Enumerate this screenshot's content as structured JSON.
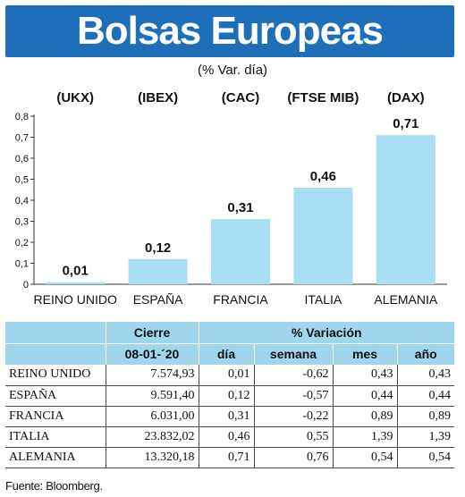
{
  "header": {
    "title": "Bolsas Europeas",
    "subtitle": "(% Var. día)"
  },
  "colors": {
    "banner": "#1c6fb8",
    "bar_fill": "#a9dff5",
    "table_header": "#9fd6ee"
  },
  "chart_data": {
    "type": "bar",
    "categories": [
      "REINO UNIDO",
      "ESPAÑA",
      "FRANCIA",
      "ITALIA",
      "ALEMANIA"
    ],
    "index_labels": [
      "(UKX)",
      "(IBEX)",
      "(CAC)",
      "(FTSE MIB)",
      "(DAX)"
    ],
    "values": [
      0.01,
      0.12,
      0.31,
      0.46,
      0.71
    ],
    "value_labels": [
      "0,01",
      "0,12",
      "0,31",
      "0,46",
      "0,71"
    ],
    "yticks": [
      "0",
      "0,1",
      "0,2",
      "0,3",
      "0,4",
      "0,5",
      "0,6",
      "0,7",
      "0,8"
    ],
    "ylim": [
      0,
      0.8
    ],
    "grid": false
  },
  "table": {
    "header_cierre": "Cierre",
    "header_variacion": "% Variación",
    "date": "08-01-´20",
    "sub_headers": [
      "día",
      "semana",
      "mes",
      "año"
    ],
    "rows": [
      {
        "name": "REINO UNIDO",
        "cierre": "7.574,93",
        "dia": "0,01",
        "semana": "-0,62",
        "mes": "0,43",
        "ano": "0,43"
      },
      {
        "name": "ESPAÑA",
        "cierre": "9.591,40",
        "dia": "0,12",
        "semana": "-0,57",
        "mes": "0,44",
        "ano": "0,44"
      },
      {
        "name": "FRANCIA",
        "cierre": "6.031,00",
        "dia": "0,31",
        "semana": "-0,22",
        "mes": "0,89",
        "ano": "0,89"
      },
      {
        "name": "ITALIA",
        "cierre": "23.832,02",
        "dia": "0,46",
        "semana": "0,55",
        "mes": "1,39",
        "ano": "1,39"
      },
      {
        "name": "ALEMANIA",
        "cierre": "13.320,18",
        "dia": "0,71",
        "semana": "0,76",
        "mes": "0,54",
        "ano": "0,54"
      }
    ]
  },
  "source": "Fuente: Bloomberg."
}
